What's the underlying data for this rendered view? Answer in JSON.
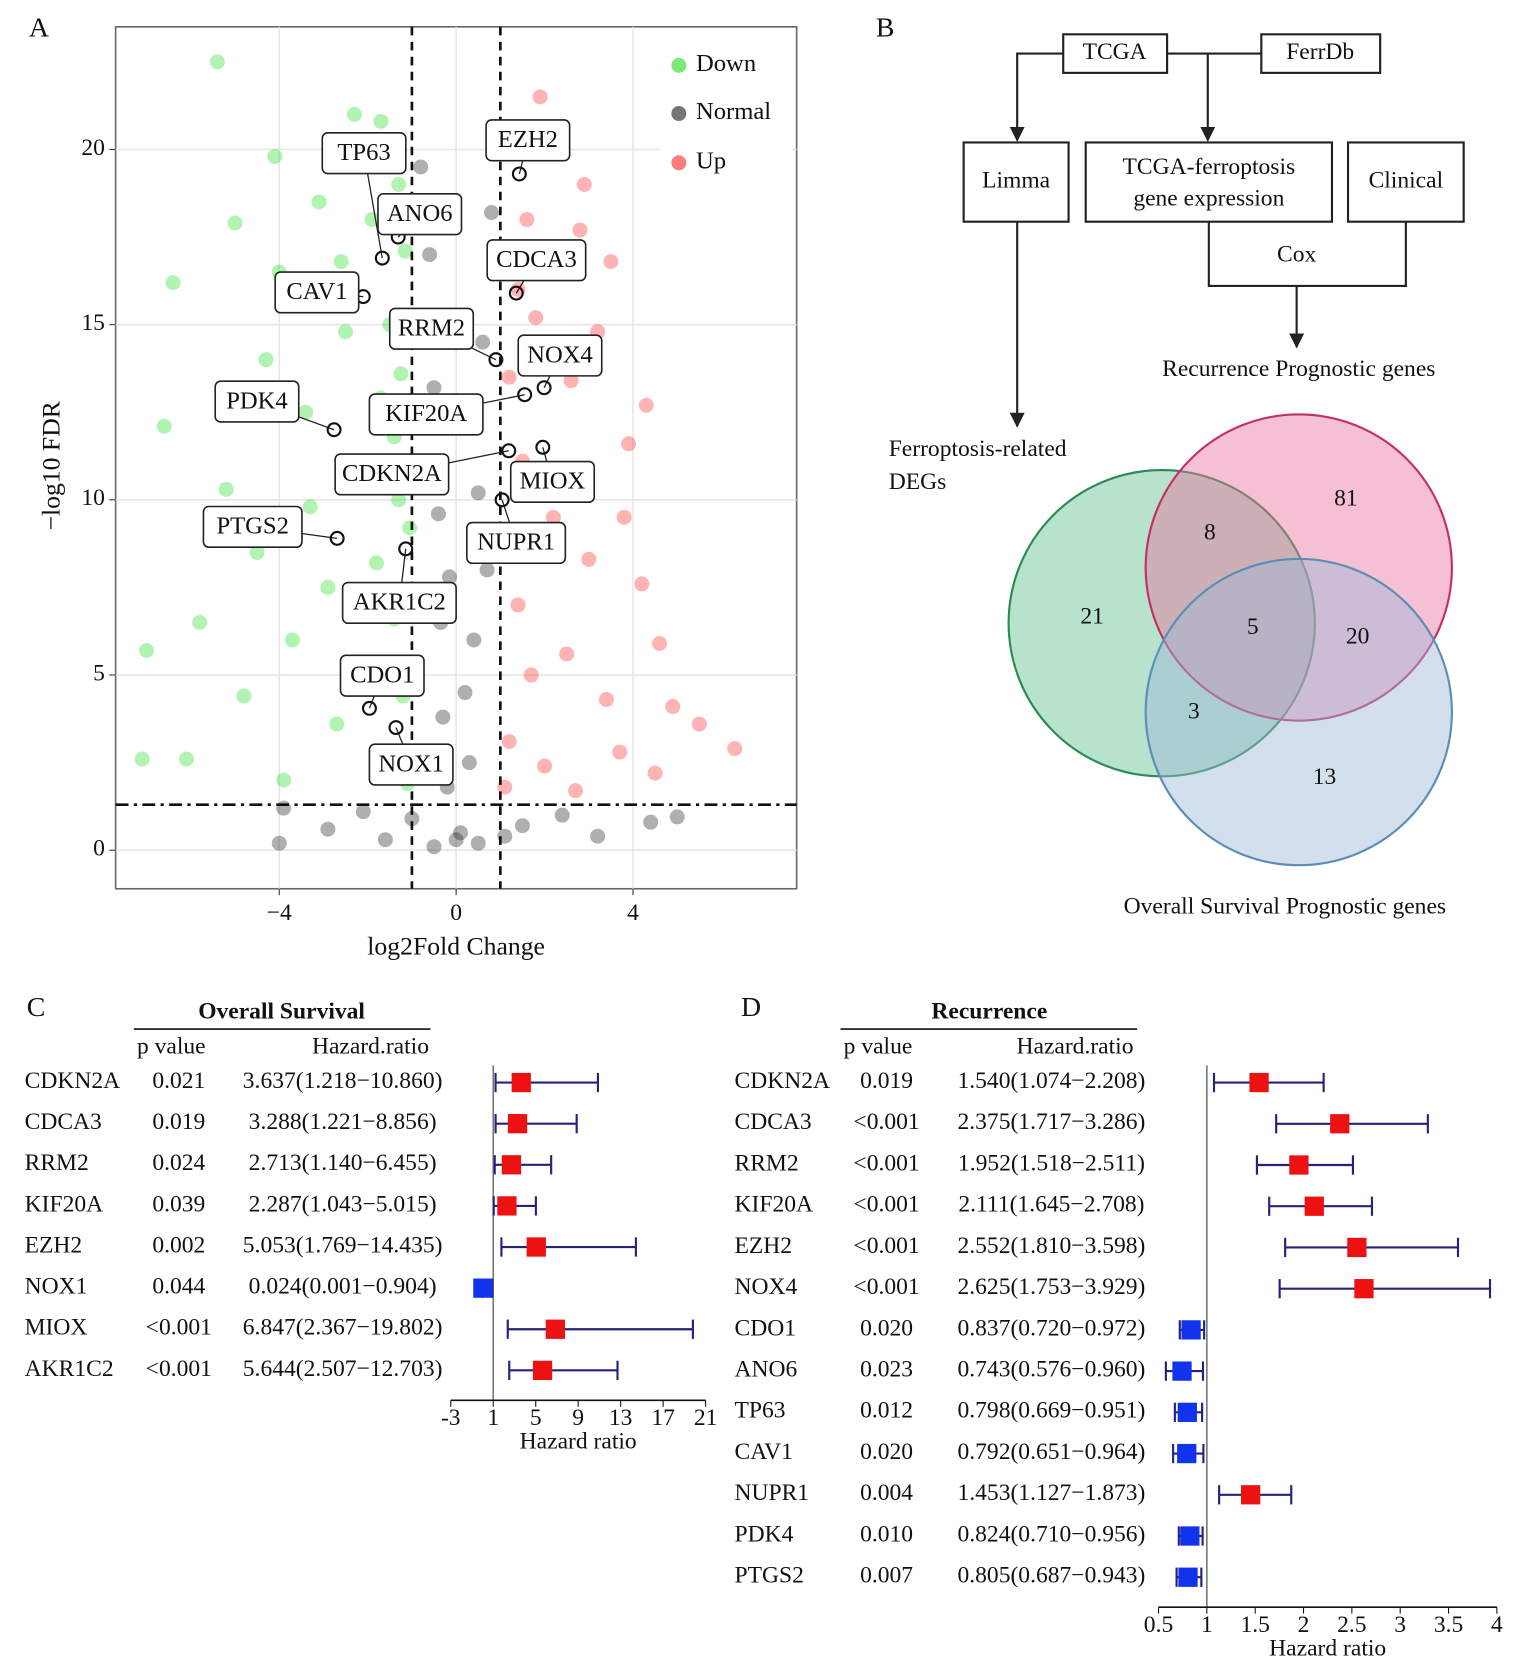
{
  "panel_labels": [
    "A",
    "B",
    "C",
    "D"
  ],
  "flowchart": {
    "nodes": [
      "TCGA",
      "FerrDb",
      "Limma",
      "TCGA-ferroptosis gene expression",
      "Clinical",
      "Cox"
    ]
  },
  "chart_data": [
    {
      "type": "volcano",
      "xlabel": "log2Fold Change",
      "ylabel": "−log10 FDR",
      "xlim": [
        -7.7,
        7.7
      ],
      "ylim": [
        -1.1,
        23.5
      ],
      "xticks": [
        {
          "value": -4,
          "label": "−4"
        },
        0,
        4
      ],
      "yticks": [
        0,
        5,
        10,
        15,
        20
      ],
      "grid": true,
      "legend": "top-right",
      "opacity": 0.35,
      "thresholds": {
        "x": [
          -1,
          1
        ],
        "y": 1.3
      },
      "series": [
        {
          "name": "Down",
          "color": "#1fdc1f",
          "x": [
            -5.4,
            -6.4,
            -6.6,
            -7,
            -7.1,
            -6.1,
            -5.2,
            -5,
            -4.1,
            -4,
            -4.3,
            -4.5,
            -3.7,
            -3.4,
            -3.1,
            -2.9,
            -2.7,
            -2.5,
            -2.3,
            -2.2,
            -2,
            -1.9,
            -1.8,
            -1.7,
            -1.6,
            -1.5,
            -1.5,
            -1.4,
            -1.3,
            -1.25,
            -1.2,
            -1.15,
            -1.1,
            -1.05,
            -1.3,
            -3.9,
            -4.8,
            -5.8,
            -3.3,
            -2.6,
            -1.7,
            -1.4,
            -1.2
          ],
          "y": [
            22.5,
            16.2,
            12.1,
            5.7,
            2.6,
            2.6,
            10.3,
            17.9,
            19.8,
            16.5,
            14,
            8.5,
            6,
            12.5,
            18.5,
            7.5,
            3.6,
            14.8,
            21,
            10.9,
            5.2,
            18,
            8.2,
            12.9,
            2.2,
            20.2,
            15,
            6.6,
            10,
            13.6,
            4.4,
            17.1,
            1.9,
            9.2,
            19,
            2,
            4.4,
            6.5,
            9.8,
            16.8,
            20.8,
            11.8,
            7.3
          ]
        },
        {
          "name": "Normal",
          "color": "#1a1a1a",
          "x": [
            -0.8,
            -0.6,
            -0.5,
            -0.4,
            -0.35,
            -0.3,
            -0.2,
            0,
            0.1,
            0.3,
            0.4,
            0.5,
            0.6,
            0.8,
            0.9,
            -0.9,
            -0.7,
            0.7,
            -3.9,
            -4,
            -2.9,
            -2.1,
            -1.6,
            1.5,
            2.4,
            3.2,
            4.4,
            5,
            -1,
            1.1,
            -0.5,
            0.5,
            0.2,
            -0.15
          ],
          "y": [
            19.5,
            17,
            13.2,
            9.6,
            6.5,
            3.8,
            1.8,
            0.3,
            0.5,
            2.5,
            6,
            10.2,
            14.5,
            18.2,
            20.5,
            15,
            11,
            8,
            1.2,
            0.2,
            0.6,
            1.1,
            0.3,
            0.7,
            1,
            0.4,
            0.8,
            0.95,
            0.9,
            0.4,
            0.1,
            0.2,
            4.5,
            7.8
          ]
        },
        {
          "name": "Up",
          "color": "#ff2424",
          "x": [
            1.3,
            1.6,
            1.9,
            2.3,
            2.8,
            3.5,
            1.8,
            2.6,
            3.2,
            3.9,
            4.3,
            1.5,
            2.2,
            3,
            4.2,
            1.4,
            2.5,
            3.4,
            4.9,
            6.3,
            1.2,
            2,
            3.7,
            5.5,
            1.1,
            2.7,
            4.5,
            1.7,
            1.2,
            2.1,
            3.8,
            4.6,
            1,
            2.9,
            1.4
          ],
          "y": [
            20.6,
            18,
            21.5,
            20,
            17.7,
            16.8,
            15.2,
            13.4,
            14.8,
            11.6,
            12.7,
            11.1,
            9.5,
            8.3,
            7.6,
            7,
            5.6,
            4.3,
            4.1,
            2.9,
            3.1,
            2.4,
            2.8,
            3.6,
            1.8,
            1.7,
            2.2,
            5,
            13.5,
            17,
            9.5,
            5.9,
            9,
            19,
            16
          ]
        }
      ],
      "labels": [
        {
          "label": "EZH2",
          "x": 1.43,
          "y": 19.3
        },
        {
          "label": "TP63",
          "x": -1.67,
          "y": 16.9
        },
        {
          "label": "ANO6",
          "x": -1.31,
          "y": 17.5
        },
        {
          "label": "CDCA3",
          "x": 1.36,
          "y": 15.9
        },
        {
          "label": "CAV1",
          "x": -2.1,
          "y": 15.8
        },
        {
          "label": "RRM2",
          "x": 0.9,
          "y": 14
        },
        {
          "label": "NOX4",
          "x": 1.99,
          "y": 13.2
        },
        {
          "label": "PDK4",
          "x": -2.76,
          "y": 12
        },
        {
          "label": "KIF20A",
          "x": 1.55,
          "y": 13
        },
        {
          "label": "CDKN2A",
          "x": 1.19,
          "y": 11.4
        },
        {
          "label": "MIOX",
          "x": 1.96,
          "y": 11.5
        },
        {
          "label": "PTGS2",
          "x": -2.69,
          "y": 8.9
        },
        {
          "label": "NUPR1",
          "x": 1.04,
          "y": 10
        },
        {
          "label": "AKR1C2",
          "x": -1.14,
          "y": 8.6
        },
        {
          "label": "CDO1",
          "x": -1.96,
          "y": 4.05
        },
        {
          "label": "NOX1",
          "x": -1.36,
          "y": 3.5
        }
      ]
    },
    {
      "type": "venn",
      "sets": [
        {
          "name": "Ferroptosis-related DEGs",
          "color": "#5fbf8c",
          "stroke": "#2a8a55"
        },
        {
          "name": "Recurrence Prognostic genes",
          "color": "#e8739e",
          "stroke": "#c2306a"
        },
        {
          "name": "Overall Survival Prognostic genes",
          "color": "#9db9d6",
          "stroke": "#5b8db8"
        }
      ],
      "values": [
        21,
        8,
        81,
        5,
        20,
        3,
        13
      ]
    },
    {
      "type": "forest",
      "title": "Overall Survival",
      "columns": [
        "p value",
        "Hazard.ratio"
      ],
      "xlabel": "Hazard ratio",
      "xlim": [
        -3,
        21
      ],
      "xticks": [
        -3,
        1,
        5,
        9,
        13,
        17,
        21
      ],
      "reference": 1,
      "risk_color": "#ee1111",
      "protective_color": "#1133ee",
      "ci_color": "#23237a",
      "genes": [
        "CDKN2A",
        "CDCA3",
        "RRM2",
        "KIF20A",
        "EZH2",
        "NOX1",
        "MIOX",
        "AKR1C2"
      ],
      "p_values": [
        "0.021",
        "0.019",
        "0.024",
        "0.039",
        "0.002",
        "0.044",
        "<0.001",
        "<0.001"
      ],
      "values": [
        3.637,
        3.288,
        2.713,
        2.287,
        5.053,
        0.024,
        6.847,
        5.644
      ],
      "lower": [
        1.218,
        1.221,
        1.14,
        1.043,
        1.769,
        0.001,
        2.367,
        2.507
      ],
      "upper": [
        10.86,
        8.856,
        6.455,
        5.015,
        14.435,
        0.904,
        19.802,
        12.703
      ],
      "value_labels": [
        "3.637(1.218−10.860)",
        "3.288(1.221−8.856)",
        "2.713(1.140−6.455)",
        "2.287(1.043−5.015)",
        "5.053(1.769−14.435)",
        "0.024(0.001−0.904)",
        "6.847(2.367−19.802)",
        "5.644(2.507−12.703)"
      ]
    },
    {
      "type": "forest",
      "title": "Recurrence",
      "columns": [
        "p value",
        "Hazard.ratio"
      ],
      "xlabel": "Hazard ratio",
      "xlim": [
        0.5,
        4
      ],
      "xticks": [
        0.5,
        1,
        1.5,
        2,
        2.5,
        3,
        3.5,
        4
      ],
      "reference": 1,
      "risk_color": "#ee1111",
      "protective_color": "#1133ee",
      "ci_color": "#23237a",
      "genes": [
        "CDKN2A",
        "CDCA3",
        "RRM2",
        "KIF20A",
        "EZH2",
        "NOX4",
        "CDO1",
        "ANO6",
        "TP63",
        "CAV1",
        "NUPR1",
        "PDK4",
        "PTGS2"
      ],
      "p_values": [
        "0.019",
        "<0.001",
        "<0.001",
        "<0.001",
        "<0.001",
        "<0.001",
        "0.020",
        "0.023",
        "0.012",
        "0.020",
        "0.004",
        "0.010",
        "0.007"
      ],
      "values": [
        1.54,
        2.375,
        1.952,
        2.111,
        2.552,
        2.625,
        0.837,
        0.743,
        0.798,
        0.792,
        1.453,
        0.824,
        0.805
      ],
      "lower": [
        1.074,
        1.717,
        1.518,
        1.645,
        1.81,
        1.753,
        0.72,
        0.576,
        0.669,
        0.651,
        1.127,
        0.71,
        0.687
      ],
      "upper": [
        2.208,
        3.286,
        2.511,
        2.708,
        3.598,
        3.929,
        0.972,
        0.96,
        0.951,
        0.964,
        1.873,
        0.956,
        0.943
      ],
      "value_labels": [
        "1.540(1.074−2.208)",
        "2.375(1.717−3.286)",
        "1.952(1.518−2.511)",
        "2.111(1.645−2.708)",
        "2.552(1.810−3.598)",
        "2.625(1.753−3.929)",
        "0.837(0.720−0.972)",
        "0.743(0.576−0.960)",
        "0.798(0.669−0.951)",
        "0.792(0.651−0.964)",
        "1.453(1.127−1.873)",
        "0.824(0.710−0.956)",
        "0.805(0.687−0.943)"
      ]
    }
  ]
}
